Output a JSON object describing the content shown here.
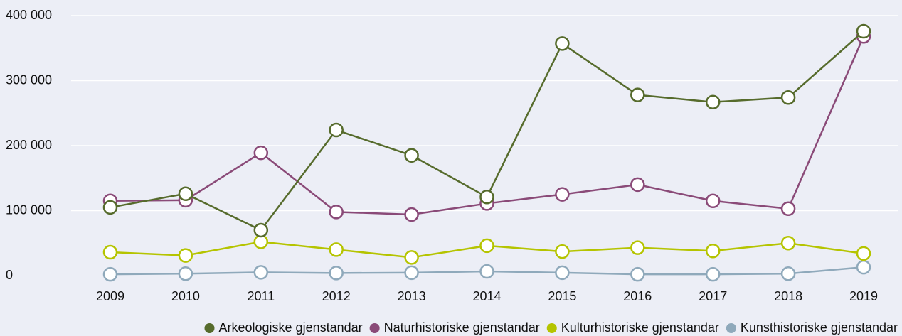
{
  "chart_data": {
    "type": "line",
    "categories": [
      "2009",
      "2010",
      "2011",
      "2012",
      "2013",
      "2014",
      "2015",
      "2016",
      "2017",
      "2018",
      "2019"
    ],
    "series": [
      {
        "name": "Kunsthistoriske gjenstandar",
        "color": "#8fa9bb",
        "values": [
          2000,
          3000,
          5000,
          4000,
          4500,
          6500,
          4500,
          2000,
          2000,
          3000,
          13000
        ]
      },
      {
        "name": "Kulturhistoriske gjenstandar",
        "color": "#b5c400",
        "values": [
          36000,
          31000,
          52000,
          40000,
          28000,
          46000,
          37000,
          43000,
          38000,
          50000,
          34000
        ]
      },
      {
        "name": "Naturhistoriske gjenstandar",
        "color": "#8a4a78",
        "values": [
          115000,
          116000,
          189000,
          98000,
          94000,
          111000,
          125000,
          140000,
          115000,
          103000,
          368000
        ]
      },
      {
        "name": "Arkeologiske gjenstandar",
        "color": "#566b2c",
        "values": [
          105000,
          126000,
          70000,
          224000,
          185000,
          121000,
          357000,
          278000,
          267000,
          274000,
          376000
        ]
      }
    ],
    "ylim": [
      0,
      400000
    ],
    "yticks": [
      0,
      {
        "value": 100000,
        "label": "100 000"
      },
      {
        "value": 200000,
        "label": "200 000"
      },
      {
        "value": 300000,
        "label": "300 000"
      },
      {
        "value": 400000,
        "label": "400 000"
      }
    ],
    "grid": true,
    "legend": "bottom"
  }
}
